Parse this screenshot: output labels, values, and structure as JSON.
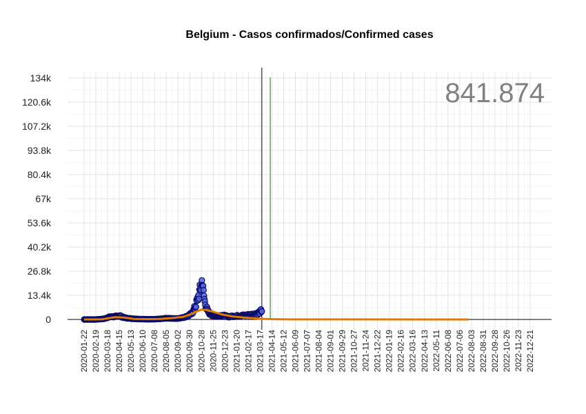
{
  "chart_data": {
    "type": "scatter",
    "title": "Belgium - Casos confirmados/Confirmed cases",
    "total_label": "841.874",
    "xlabel": "",
    "ylabel": "",
    "x_start": "2020-01-22",
    "x_end": "2022-12-21",
    "ylim": [
      0,
      134000
    ],
    "y_ticks": [
      0,
      13400,
      26800,
      40200,
      53600,
      67000,
      80400,
      93800,
      107200,
      120600,
      134000
    ],
    "y_tick_labels": [
      "0",
      "13.4k",
      "26.8k",
      "40.2k",
      "53.6k",
      "67k",
      "80.4k",
      "93.8k",
      "107.2k",
      "120.6k",
      "134k"
    ],
    "x_tick_labels": [
      "2020-01-22",
      "2020-02-19",
      "2020-03-18",
      "2020-04-15",
      "2020-05-13",
      "2020-06-10",
      "2020-07-08",
      "2020-08-05",
      "2020-09-02",
      "2020-09-30",
      "2020-10-28",
      "2020-11-25",
      "2020-12-23",
      "2021-01-20",
      "2021-02-17",
      "2021-03-17",
      "2021-04-14",
      "2021-05-12",
      "2021-06-09",
      "2021-07-07",
      "2021-08-04",
      "2021-09-01",
      "2021-09-29",
      "2021-10-27",
      "2021-11-24",
      "2021-12-22",
      "2022-01-19",
      "2022-02-16",
      "2022-03-16",
      "2022-04-13",
      "2022-05-11",
      "2022-06-08",
      "2022-07-06",
      "2022-08-03",
      "2022-08-31",
      "2022-09-28",
      "2022-10-26",
      "2022-11-23",
      "2022-12-21"
    ],
    "current_date": "2021-03-21",
    "projection_date": "2021-04-10",
    "grid": true,
    "series": [
      {
        "kind": "daily",
        "points": [
          [
            "2020-01-22",
            0
          ],
          [
            "2020-02-19",
            0
          ],
          [
            "2020-03-10",
            400
          ],
          [
            "2020-03-20",
            1300
          ],
          [
            "2020-03-28",
            1500
          ],
          [
            "2020-04-04",
            1600
          ],
          [
            "2020-04-10",
            1800
          ],
          [
            "2020-04-15",
            2400
          ],
          [
            "2020-04-22",
            1300
          ],
          [
            "2020-05-01",
            800
          ],
          [
            "2020-05-13",
            500
          ],
          [
            "2020-06-01",
            250
          ],
          [
            "2020-06-20",
            150
          ],
          [
            "2020-07-08",
            150
          ],
          [
            "2020-07-25",
            400
          ],
          [
            "2020-08-05",
            700
          ],
          [
            "2020-08-15",
            650
          ],
          [
            "2020-08-25",
            500
          ],
          [
            "2020-09-02",
            600
          ],
          [
            "2020-09-12",
            1000
          ],
          [
            "2020-09-20",
            1500
          ],
          [
            "2020-09-27",
            2200
          ],
          [
            "2020-10-03",
            3000
          ],
          [
            "2020-10-08",
            4500
          ],
          [
            "2020-10-12",
            6500
          ],
          [
            "2020-10-16",
            9000
          ],
          [
            "2020-10-20",
            12000
          ],
          [
            "2020-10-23",
            15000
          ],
          [
            "2020-10-26",
            17000
          ],
          [
            "2020-10-28",
            18500
          ],
          [
            "2020-10-30",
            23500
          ],
          [
            "2020-11-01",
            16000
          ],
          [
            "2020-11-03",
            13000
          ],
          [
            "2020-11-05",
            9500
          ],
          [
            "2020-11-08",
            7000
          ],
          [
            "2020-11-12",
            4500
          ],
          [
            "2020-11-18",
            3000
          ],
          [
            "2020-11-25",
            2300
          ],
          [
            "2020-12-03",
            2000
          ],
          [
            "2020-12-10",
            2200
          ],
          [
            "2020-12-17",
            2300
          ],
          [
            "2020-12-23",
            2000
          ],
          [
            "2021-01-01",
            1500
          ],
          [
            "2021-01-10",
            1800
          ],
          [
            "2021-01-20",
            2000
          ],
          [
            "2021-02-01",
            2200
          ],
          [
            "2021-02-10",
            2300
          ],
          [
            "2021-02-17",
            2500
          ],
          [
            "2021-03-01",
            2800
          ],
          [
            "2021-03-10",
            3300
          ],
          [
            "2021-03-17",
            4200
          ],
          [
            "2021-03-21",
            5000
          ]
        ]
      },
      {
        "kind": "smoothed",
        "points": [
          [
            "2020-01-22",
            0
          ],
          [
            "2020-03-05",
            100
          ],
          [
            "2020-04-05",
            1300
          ],
          [
            "2020-04-25",
            1100
          ],
          [
            "2020-05-20",
            300
          ],
          [
            "2020-06-20",
            200
          ],
          [
            "2020-07-20",
            300
          ],
          [
            "2020-08-20",
            800
          ],
          [
            "2020-09-15",
            1500
          ],
          [
            "2020-10-01",
            2800
          ],
          [
            "2020-10-15",
            4300
          ],
          [
            "2020-10-28",
            5500
          ],
          [
            "2020-11-08",
            5300
          ],
          [
            "2020-11-25",
            4300
          ],
          [
            "2020-12-15",
            2800
          ],
          [
            "2021-01-10",
            1700
          ],
          [
            "2021-02-05",
            1100
          ],
          [
            "2021-03-01",
            700
          ],
          [
            "2021-03-21",
            350
          ],
          [
            "2021-04-20",
            150
          ],
          [
            "2021-06-01",
            30
          ],
          [
            "2022-07-27",
            0
          ]
        ]
      }
    ]
  }
}
